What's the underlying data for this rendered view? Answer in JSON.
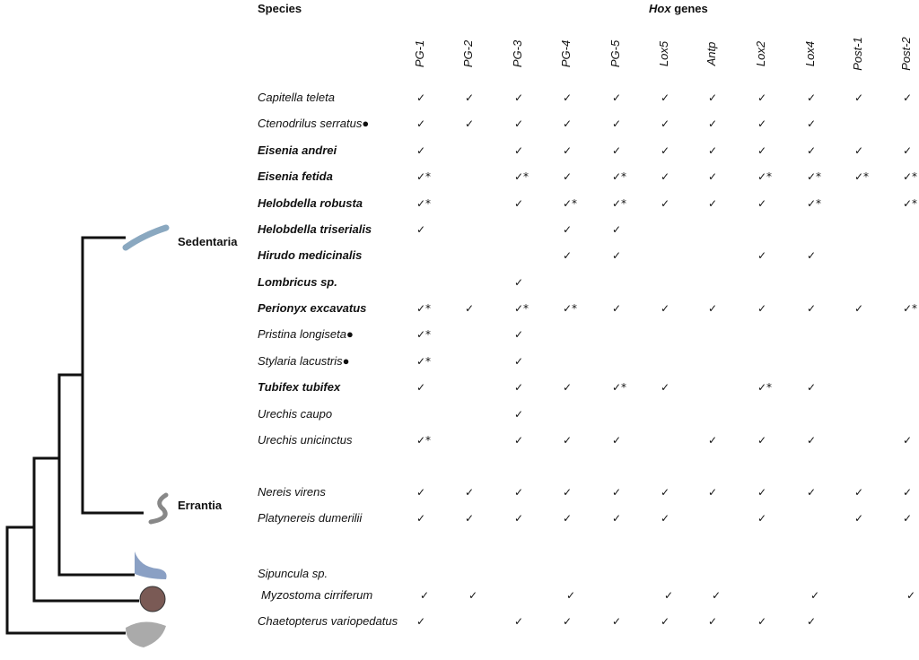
{
  "header": {
    "species": "Species",
    "hox": "Hox",
    "genes": "genes"
  },
  "clades": [
    "Sedentaria",
    "Errantia"
  ],
  "genes": [
    "PG-1",
    "PG-2",
    "PG-3",
    "PG-4",
    "PG-5",
    "Lox5",
    "Antp",
    "Lox2",
    "Lox4",
    "Post-1",
    "Post-2"
  ],
  "rows": [
    {
      "species": "Capitella teleta",
      "bold": false,
      "cells": [
        "✓",
        "✓",
        "✓",
        "✓",
        "✓",
        "✓",
        "✓",
        "✓",
        "✓",
        "✓",
        "✓"
      ]
    },
    {
      "species": "Ctenodrilus serratus●",
      "bold": false,
      "cells": [
        "✓",
        "✓",
        "✓",
        "✓",
        "✓",
        "✓",
        "✓",
        "✓",
        "✓",
        null,
        null
      ]
    },
    {
      "species": "Eisenia andrei",
      "bold": true,
      "cells": [
        "✓",
        null,
        "✓",
        "✓",
        "✓",
        "✓",
        "✓",
        "✓",
        "✓",
        "✓",
        "✓"
      ]
    },
    {
      "species": "Eisenia fetida",
      "bold": true,
      "cells": [
        "✓*",
        null,
        "✓*",
        "✓",
        "✓*",
        "✓",
        "✓",
        "✓*",
        "✓*",
        "✓*",
        "✓*"
      ]
    },
    {
      "species": "Helobdella robusta",
      "bold": true,
      "cells": [
        "✓*",
        null,
        "✓",
        "✓*",
        "✓*",
        "✓",
        "✓",
        "✓",
        "✓*",
        null,
        "✓*"
      ]
    },
    {
      "species": "Helobdella triserialis",
      "bold": true,
      "cells": [
        "✓",
        null,
        null,
        "✓",
        "✓",
        null,
        null,
        null,
        null,
        null,
        null
      ]
    },
    {
      "species": "Hirudo medicinalis",
      "bold": true,
      "cells": [
        null,
        null,
        null,
        "✓",
        "✓",
        null,
        null,
        "✓",
        "✓",
        null,
        null
      ]
    },
    {
      "species": "Lombricus sp.",
      "bold": true,
      "cells": [
        null,
        null,
        "✓",
        null,
        null,
        null,
        null,
        null,
        null,
        null,
        null
      ]
    },
    {
      "species": "Perionyx excavatus",
      "bold": true,
      "cells": [
        "✓*",
        "✓",
        "✓*",
        "✓*",
        "✓",
        "✓",
        "✓",
        "✓",
        "✓",
        "✓",
        "✓*"
      ]
    },
    {
      "species": "Pristina longiseta●",
      "bold": false,
      "cells": [
        "✓*",
        null,
        "✓",
        null,
        null,
        null,
        null,
        null,
        null,
        null,
        null
      ]
    },
    {
      "species": "Stylaria lacustris●",
      "bold": false,
      "cells": [
        "✓*",
        null,
        "✓",
        null,
        null,
        null,
        null,
        null,
        null,
        null,
        null
      ]
    },
    {
      "species": "Tubifex tubifex",
      "bold": true,
      "cells": [
        "✓",
        null,
        "✓",
        "✓",
        "✓*",
        "✓",
        null,
        "✓*",
        "✓",
        null,
        null
      ]
    },
    {
      "species": "Urechis caupo",
      "bold": false,
      "cells": [
        null,
        null,
        "✓",
        null,
        null,
        null,
        null,
        null,
        null,
        null,
        null
      ]
    },
    {
      "species": "Urechis unicinctus",
      "bold": false,
      "cells": [
        "✓*",
        null,
        "✓",
        "✓",
        "✓",
        null,
        "✓",
        "✓",
        "✓",
        null,
        "✓"
      ]
    },
    {
      "species": "Nereis virens",
      "bold": false,
      "cells": [
        "✓",
        "✓",
        "✓",
        "✓",
        "✓",
        "✓",
        "✓",
        "✓",
        "✓",
        "✓",
        "✓"
      ]
    },
    {
      "species": "Platynereis dumerilii",
      "bold": false,
      "cells": [
        "✓",
        "✓",
        "✓",
        "✓",
        "✓",
        "✓",
        null,
        "✓",
        null,
        "✓",
        "✓"
      ]
    },
    {
      "species": "Sipuncula sp.",
      "bold": false,
      "cells": [
        null,
        null,
        null,
        null,
        null,
        null,
        null,
        null,
        null,
        null,
        null
      ]
    },
    {
      "species": "Myzostoma cirriferum",
      "bold": false,
      "cells": [
        "✓",
        "✓",
        null,
        "✓",
        null,
        "✓",
        "✓",
        null,
        "✓",
        null,
        "✓"
      ]
    },
    {
      "species": "Chaetopterus variopedatus",
      "bold": false,
      "cells": [
        "✓",
        null,
        "✓",
        "✓",
        "✓",
        "✓",
        "✓",
        "✓",
        "✓",
        null,
        null
      ]
    }
  ]
}
